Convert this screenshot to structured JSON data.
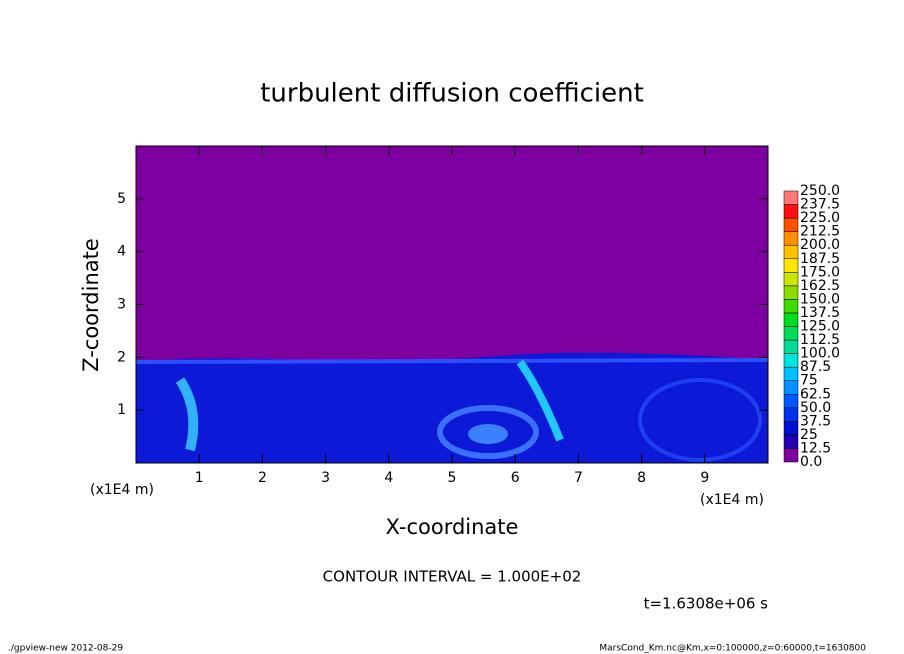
{
  "chart_data": {
    "type": "contour",
    "title": "turbulent diffusion coefficient",
    "xlabel": "X-coordinate",
    "ylabel": "Z-coordinate",
    "x_unit": "(x1E4 m)",
    "xlim": [
      0,
      10
    ],
    "ylim": [
      0,
      6
    ],
    "xticks": [
      1,
      2,
      3,
      4,
      5,
      6,
      7,
      8,
      9
    ],
    "yticks": [
      1,
      2,
      3,
      4,
      5
    ],
    "contour_interval": "CONTOUR INTERVAL = 1.000E+02",
    "time": "t=1.6308e+06 s",
    "colorbar": {
      "levels": [
        {
          "value": 0,
          "label": "0.0"
        },
        12.5,
        25,
        37.5,
        {
          "value": 50,
          "label": "50.0"
        },
        62.5,
        75,
        87.5,
        {
          "value": 100,
          "label": "100.0"
        },
        112.5,
        {
          "value": 125,
          "label": "125.0"
        },
        137.5,
        {
          "value": 150,
          "label": "150.0"
        },
        162.5,
        {
          "value": 175,
          "label": "175.0"
        },
        187.5,
        {
          "value": 200,
          "label": "200.0"
        },
        212.5,
        {
          "value": 225,
          "label": "225.0"
        },
        237.5,
        {
          "value": 250,
          "label": "250.0"
        }
      ],
      "colors": [
        "#7f00a0",
        "#2000b0",
        "#0010d0",
        "#0030f0",
        "#0058ff",
        "#0090ff",
        "#00c0ff",
        "#00e6dc",
        "#00dc96",
        "#00dc5a",
        "#00dc1e",
        "#40dc00",
        "#8cdc00",
        "#c8e600",
        "#ffe600",
        "#ffc000",
        "#ff9000",
        "#ff5000",
        "#ff1010",
        "#ff7878"
      ]
    },
    "footer_left": "./gpview-new  2012-08-29",
    "footer_right": "MarsCond_Km.nc@Km,x=0:100000,z=0:60000,t=1630800"
  }
}
